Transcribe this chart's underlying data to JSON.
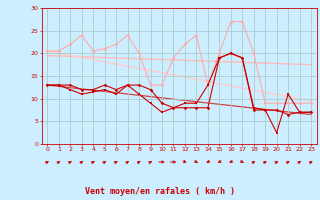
{
  "background_color": "#cceeff",
  "grid_color": "#aacccc",
  "xlabel": "Vent moyen/en rafales ( km/h )",
  "xlabel_color": "#cc0000",
  "xlabel_fontsize": 6,
  "tick_color": "#cc0000",
  "xlim": [
    -0.5,
    23.5
  ],
  "ylim": [
    0,
    30
  ],
  "yticks": [
    0,
    5,
    10,
    15,
    20,
    25,
    30
  ],
  "xticks": [
    0,
    1,
    2,
    3,
    4,
    5,
    6,
    7,
    8,
    9,
    10,
    11,
    12,
    13,
    14,
    15,
    16,
    17,
    18,
    19,
    20,
    21,
    22,
    23
  ],
  "line1_x": [
    0,
    1,
    2,
    3,
    4,
    5,
    6,
    7,
    8,
    9,
    10,
    11,
    12,
    13,
    14,
    15,
    16,
    17,
    18,
    19,
    20,
    21,
    22,
    23
  ],
  "line1_y": [
    13,
    13,
    13,
    12,
    12,
    13,
    12,
    13,
    13,
    12,
    9,
    8,
    8,
    8,
    8,
    19,
    20,
    19,
    7.5,
    7.5,
    7.5,
    6.5,
    7,
    7
  ],
  "line1_color": "#cc0000",
  "line1_lw": 0.8,
  "line1_marker": "D",
  "line1_ms": 1.8,
  "line2_x": [
    0,
    1,
    2,
    3,
    4,
    5,
    6,
    7,
    8,
    9,
    10,
    11,
    12,
    13,
    14,
    15,
    16,
    17,
    18,
    19,
    20,
    21,
    22,
    23
  ],
  "line2_y": [
    13,
    13,
    12,
    11,
    11.5,
    12,
    11,
    13,
    11,
    9,
    7,
    8,
    9,
    9,
    13,
    19,
    20,
    19,
    8,
    7.5,
    2.5,
    11,
    7,
    7
  ],
  "line2_color": "#cc0000",
  "line2_lw": 0.8,
  "line2_marker": "s",
  "line2_ms": 1.8,
  "line3_x": [
    0,
    1,
    2,
    3,
    4,
    5,
    6,
    7,
    8,
    9,
    10,
    11,
    12,
    13,
    14,
    15,
    16,
    17,
    18,
    19,
    20,
    21,
    22,
    23
  ],
  "line3_y": [
    20.5,
    20.5,
    22,
    24,
    20.5,
    21,
    22,
    24,
    20,
    13,
    13,
    19,
    22,
    24,
    13,
    20,
    27,
    27,
    20,
    9,
    9,
    9,
    9,
    9
  ],
  "line3_color": "#ffaaaa",
  "line3_lw": 0.8,
  "line3_marker": "D",
  "line3_ms": 1.8,
  "line4_x": [
    0,
    23
  ],
  "line4_y": [
    20.5,
    9.5
  ],
  "line4_color": "#ffcccc",
  "line4_lw": 1.0,
  "line5_x": [
    0,
    23
  ],
  "line5_y": [
    13,
    6.5
  ],
  "line5_color": "#cc4444",
  "line5_lw": 0.9,
  "line6_x": [
    0,
    23
  ],
  "line6_y": [
    19.5,
    17.5
  ],
  "line6_color": "#ffbbbb",
  "line6_lw": 1.0,
  "wind_dirs": [
    225,
    225,
    225,
    225,
    225,
    225,
    225,
    225,
    225,
    225,
    270,
    270,
    315,
    315,
    45,
    45,
    45,
    315,
    225,
    225,
    225,
    225,
    225,
    225
  ]
}
